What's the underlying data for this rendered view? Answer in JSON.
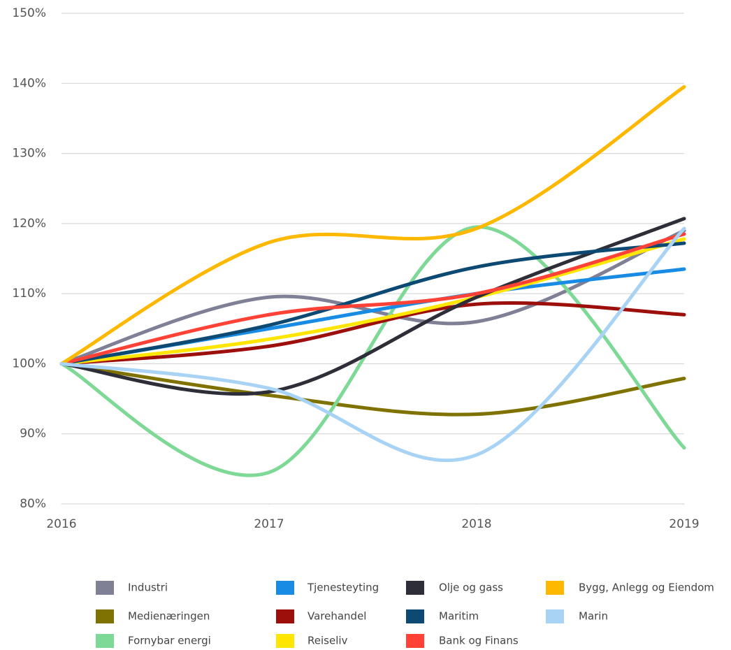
{
  "chart_data": {
    "type": "line",
    "x": [
      2016,
      2017,
      2018,
      2019
    ],
    "xlim": [
      2016,
      2019
    ],
    "xticks": [
      2016,
      2017,
      2018,
      2019
    ],
    "ylim": [
      80,
      150
    ],
    "yticks": [
      {
        "value": 80,
        "label": "80%"
      },
      {
        "value": 90,
        "label": "90%"
      },
      {
        "value": 100,
        "label": "100%"
      },
      {
        "value": 110,
        "label": "110%"
      },
      {
        "value": 120,
        "label": "120%"
      },
      {
        "value": 130,
        "label": "130%"
      },
      {
        "value": 140,
        "label": "140%"
      },
      {
        "value": 150,
        "label": "150%"
      }
    ],
    "grid": true,
    "legend": "bottom",
    "series": [
      {
        "name": "Industri",
        "color": "#7f7f96",
        "values": [
          100,
          109.5,
          106,
          119
        ]
      },
      {
        "name": "Medienæringen",
        "color": "#7f7200",
        "values": [
          100,
          95.5,
          92.8,
          97.9
        ]
      },
      {
        "name": "Fornybar energi",
        "color": "#7ed896",
        "values": [
          100,
          84.5,
          119.5,
          88
        ]
      },
      {
        "name": "Tjenesteyting",
        "color": "#188ce5",
        "values": [
          100,
          105,
          110,
          113.5
        ]
      },
      {
        "name": "Varehandel",
        "color": "#9c0f0b",
        "values": [
          100,
          102.5,
          108.5,
          107
        ]
      },
      {
        "name": "Reiseliv",
        "color": "#ffe600",
        "values": [
          100,
          103.5,
          109.5,
          117.8
        ]
      },
      {
        "name": "Olje og gass",
        "color": "#2e2e38",
        "values": [
          100,
          96,
          109.5,
          120.7
        ]
      },
      {
        "name": "Maritim",
        "color": "#0d4a73",
        "values": [
          100,
          105.5,
          113.8,
          117.2
        ]
      },
      {
        "name": "Bank og Finans",
        "color": "#ff4136",
        "values": [
          100,
          107,
          110,
          118.5
        ]
      },
      {
        "name": "Bygg, Anlegg og Eiendom",
        "color": "#ffb800",
        "values": [
          100,
          117.3,
          119.3,
          139.5
        ]
      },
      {
        "name": "Marin",
        "color": "#a8d3f5",
        "values": [
          100,
          96.5,
          87,
          119.3
        ]
      }
    ]
  }
}
